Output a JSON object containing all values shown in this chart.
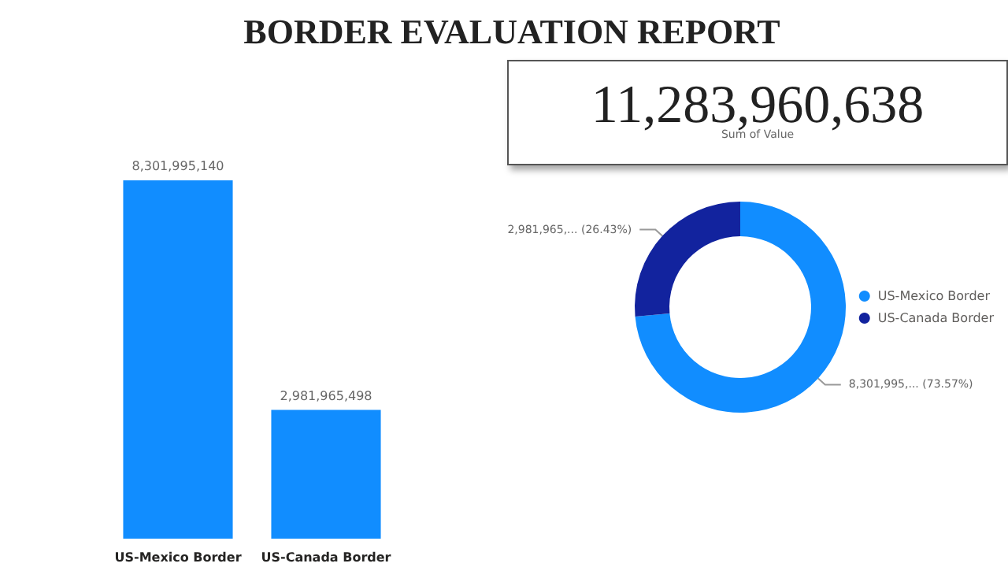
{
  "chart_data": [
    {
      "type": "bar",
      "title": "BORDER EVALUATION REPORT",
      "categories": [
        "US-Mexico Border",
        "US-Canada Border"
      ],
      "values": [
        8301995140,
        2981965498
      ],
      "color": "#118dff",
      "value_labels": [
        "8,301,995,140",
        "2,981,965,498"
      ],
      "legend": false
    },
    {
      "type": "other",
      "categories": [
        "Sum of Value"
      ],
      "values": [
        11283960638
      ],
      "value_labels": [
        "11,283,960,638"
      ]
    },
    {
      "type": "donut",
      "categories": [
        "US-Mexico Border",
        "US-Canada Border"
      ],
      "values": [
        73.57,
        26.43
      ],
      "colors": [
        "#118dff",
        "#12239e"
      ],
      "value_labels": [
        "8,301,995,... (73.57%)",
        "2,981,965,... (26.43%)"
      ],
      "legend": "right"
    }
  ]
}
